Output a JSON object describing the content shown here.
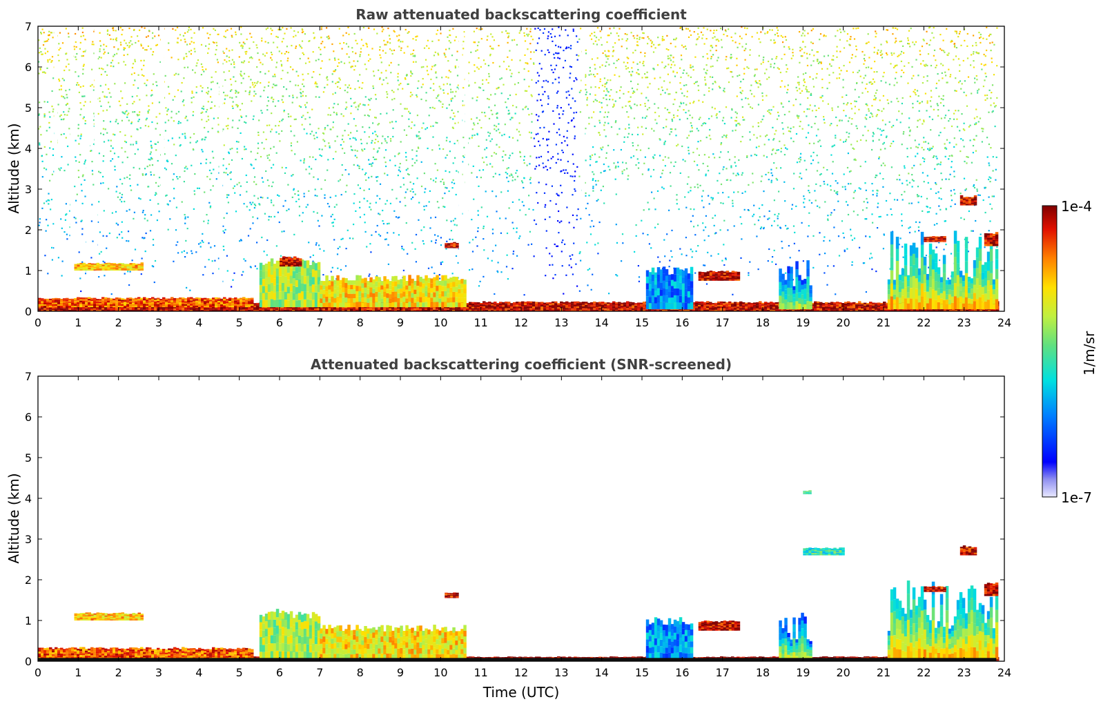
{
  "chart_data": [
    {
      "type": "heatmap",
      "title": "Raw attenuated backscattering coefficient",
      "xlabel": "",
      "ylabel": "Altitude (km)",
      "xlim": [
        0,
        24
      ],
      "ylim": [
        0,
        7
      ],
      "x_ticks": [
        "0",
        "1",
        "2",
        "3",
        "4",
        "5",
        "6",
        "7",
        "8",
        "9",
        "10",
        "11",
        "12",
        "13",
        "14",
        "15",
        "16",
        "17",
        "18",
        "19",
        "20",
        "21",
        "22",
        "23",
        "24"
      ],
      "y_ticks": [
        "0",
        "1",
        "2",
        "3",
        "4",
        "5",
        "6",
        "7"
      ],
      "features": [
        {
          "kind": "surface_layer",
          "x": [
            0,
            23.8
          ],
          "y": [
            0,
            0.25
          ],
          "level": 0.95
        },
        {
          "kind": "boundary_layer",
          "x": [
            0,
            5.3
          ],
          "y": [
            0.1,
            0.35
          ],
          "level": 0.85
        },
        {
          "kind": "cloud",
          "x": [
            0.9,
            2.6
          ],
          "y": [
            1.0,
            1.2
          ],
          "level": 0.75
        },
        {
          "kind": "boundary_layer",
          "x": [
            5.5,
            7.0
          ],
          "y": [
            0.1,
            1.3
          ],
          "level": 0.6
        },
        {
          "kind": "cloud",
          "x": [
            6.0,
            6.5
          ],
          "y": [
            1.1,
            1.35
          ],
          "level": 0.95
        },
        {
          "kind": "boundary_layer",
          "x": [
            7.0,
            10.6
          ],
          "y": [
            0.1,
            0.9
          ],
          "level": 0.7
        },
        {
          "kind": "cloud",
          "x": [
            10.1,
            10.4
          ],
          "y": [
            1.55,
            1.7
          ],
          "level": 0.95
        },
        {
          "kind": "boundary_layer",
          "x": [
            15.1,
            16.2
          ],
          "y": [
            0.05,
            1.1
          ],
          "level": 0.3
        },
        {
          "kind": "cloud",
          "x": [
            16.4,
            17.4
          ],
          "y": [
            0.75,
            1.0
          ],
          "level": 0.95
        },
        {
          "kind": "plume",
          "x": [
            18.4,
            19.2
          ],
          "y": [
            0.05,
            1.3
          ],
          "level": 0.35
        },
        {
          "kind": "plume",
          "x": [
            21.1,
            23.8
          ],
          "y": [
            0.05,
            2.0
          ],
          "level": 0.5
        },
        {
          "kind": "cloud",
          "x": [
            22.0,
            22.5
          ],
          "y": [
            1.7,
            1.85
          ],
          "level": 0.95
        },
        {
          "kind": "cloud",
          "x": [
            22.9,
            23.3
          ],
          "y": [
            2.6,
            2.85
          ],
          "level": 0.95
        },
        {
          "kind": "cloud",
          "x": [
            23.5,
            23.8
          ],
          "y": [
            1.6,
            1.95
          ],
          "level": 0.95
        }
      ],
      "background_noise": "high, increasing with altitude"
    },
    {
      "type": "heatmap",
      "title": "Attenuated backscattering coefficient (SNR-screened)",
      "xlabel": "Time (UTC)",
      "ylabel": "Altitude (km)",
      "xlim": [
        0,
        24
      ],
      "ylim": [
        0,
        7
      ],
      "x_ticks": [
        "0",
        "1",
        "2",
        "3",
        "4",
        "5",
        "6",
        "7",
        "8",
        "9",
        "10",
        "11",
        "12",
        "13",
        "14",
        "15",
        "16",
        "17",
        "18",
        "19",
        "20",
        "21",
        "22",
        "23",
        "24"
      ],
      "y_ticks": [
        "0",
        "1",
        "2",
        "3",
        "4",
        "5",
        "6",
        "7"
      ],
      "features": [
        {
          "kind": "surface_layer",
          "x": [
            0,
            23.8
          ],
          "y": [
            0,
            0.12
          ],
          "level": 1.0
        },
        {
          "kind": "boundary_layer",
          "x": [
            0,
            5.3
          ],
          "y": [
            0.05,
            0.35
          ],
          "level": 0.85
        },
        {
          "kind": "cloud",
          "x": [
            0.9,
            2.6
          ],
          "y": [
            1.0,
            1.2
          ],
          "level": 0.75
        },
        {
          "kind": "boundary_layer",
          "x": [
            5.5,
            7.0
          ],
          "y": [
            0.05,
            1.3
          ],
          "level": 0.6
        },
        {
          "kind": "boundary_layer",
          "x": [
            7.0,
            10.6
          ],
          "y": [
            0.05,
            0.9
          ],
          "level": 0.7
        },
        {
          "kind": "cloud",
          "x": [
            10.1,
            10.4
          ],
          "y": [
            1.55,
            1.7
          ],
          "level": 0.95
        },
        {
          "kind": "boundary_layer",
          "x": [
            15.1,
            16.2
          ],
          "y": [
            0.05,
            1.1
          ],
          "level": 0.3
        },
        {
          "kind": "cloud",
          "x": [
            16.4,
            17.4
          ],
          "y": [
            0.75,
            1.0
          ],
          "level": 0.95
        },
        {
          "kind": "plume",
          "x": [
            18.4,
            19.2
          ],
          "y": [
            0.05,
            1.3
          ],
          "level": 0.35
        },
        {
          "kind": "plume",
          "x": [
            21.1,
            23.8
          ],
          "y": [
            0.05,
            2.0
          ],
          "level": 0.5
        },
        {
          "kind": "cloud",
          "x": [
            22.0,
            22.5
          ],
          "y": [
            1.7,
            1.85
          ],
          "level": 0.95
        },
        {
          "kind": "cloud",
          "x": [
            22.9,
            23.3
          ],
          "y": [
            2.6,
            2.85
          ],
          "level": 0.95
        },
        {
          "kind": "cloud",
          "x": [
            23.5,
            23.8
          ],
          "y": [
            1.6,
            1.95
          ],
          "level": 0.95
        },
        {
          "kind": "aerosol_layer",
          "x": [
            19.0,
            20.0
          ],
          "y": [
            2.6,
            2.8
          ],
          "level": 0.45
        },
        {
          "kind": "aerosol_layer",
          "x": [
            19.0,
            19.2
          ],
          "y": [
            4.1,
            4.2
          ],
          "level": 0.5
        }
      ],
      "background_noise": "screened (removed)"
    }
  ],
  "colorbar": {
    "label": "1/m/sr",
    "max_label": "1e-4",
    "min_label": "1e-7",
    "colormap": "jet",
    "scale": "log"
  },
  "colors": {
    "title": "#404040",
    "background": "#ffffff"
  }
}
